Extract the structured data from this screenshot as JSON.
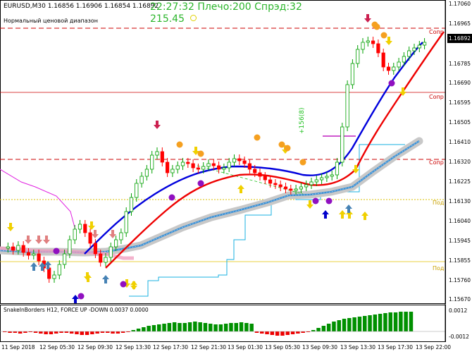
{
  "header": {
    "symbol_line": "EURUSD,M30  1.16856 1.16906 1.16854 1.16892",
    "subtitle": "Нормальный ценовой диапазон",
    "status_line": "22:27:32 Плечо:200 Спрэд:32",
    "value": "215.45",
    "status_icon": "clock-icon"
  },
  "annotation": "+156(8)",
  "price_axis": {
    "labels": [
      "1.17060",
      "1.16965",
      "1.16875",
      "1.16785",
      "1.16690",
      "1.16595",
      "1.16505",
      "1.16410",
      "1.16320",
      "1.16225",
      "1.16130",
      "1.16040",
      "1.15945",
      "1.15855",
      "1.15760",
      "1.15670"
    ],
    "current": "1.16892"
  },
  "level_labels": [
    {
      "text": "Сопр",
      "color": "#cc0000"
    },
    {
      "text": "Сопр",
      "color": "#cc0000"
    },
    {
      "text": "Сопр",
      "color": "#cc0000"
    },
    {
      "text": "Под",
      "color": "#c8a000"
    },
    {
      "text": "Под",
      "color": "#c8a000"
    }
  ],
  "time_axis": [
    "11 Sep 2018",
    "12 Sep 05:30",
    "12 Sep 09:30",
    "12 Sep 13:30",
    "12 Sep 17:30",
    "12 Sep 21:30",
    "13 Sep 01:30",
    "13 Sep 05:30",
    "13 Sep 09:30",
    "13 Sep 13:30",
    "13 Sep 17:30",
    "13 Sep 22:00"
  ],
  "indicator": {
    "title": "SnakeInBorders H12, FORCE UP -DOWN  0.0037 0.0000",
    "axis_top": "0.0012",
    "axis_bottom": "-0.0012"
  },
  "colors": {
    "bull": "#00a000",
    "bear": "#ff0000",
    "blue_ma": "#0000dd",
    "red_ma": "#ee0000",
    "resistance": "#cc0000",
    "support": "#c8a000"
  }
}
